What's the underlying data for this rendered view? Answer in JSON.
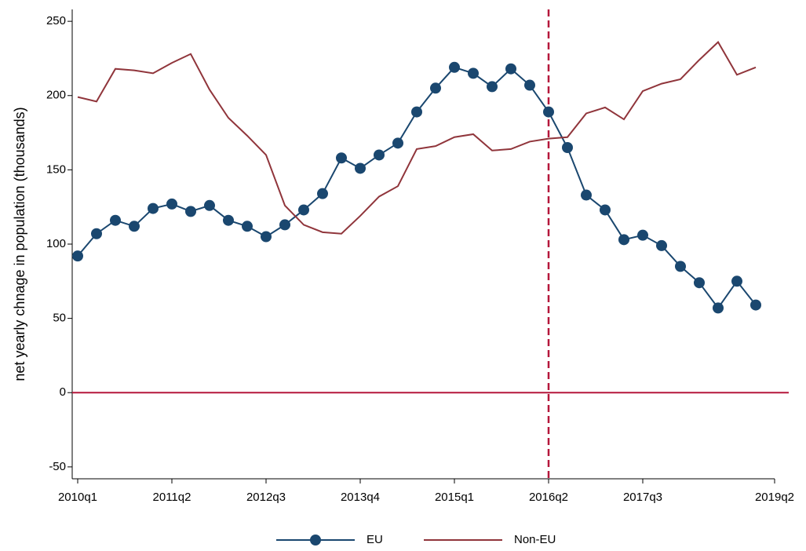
{
  "chart_data": {
    "type": "line",
    "y_label": "net yearly chnage in population (thousands)",
    "x": [
      "2010q1",
      "2010q2",
      "2010q3",
      "2010q4",
      "2011q1",
      "2011q2",
      "2011q3",
      "2011q4",
      "2012q1",
      "2012q2",
      "2012q3",
      "2012q4",
      "2013q1",
      "2013q2",
      "2013q3",
      "2013q4",
      "2014q1",
      "2014q2",
      "2014q3",
      "2014q4",
      "2015q1",
      "2015q2",
      "2015q3",
      "2015q4",
      "2016q1",
      "2016q2",
      "2016q3",
      "2016q4",
      "2017q1",
      "2017q2",
      "2017q3",
      "2017q4",
      "2018q1",
      "2018q2",
      "2018q3",
      "2018q4",
      "2019q1"
    ],
    "series": [
      {
        "name": "EU",
        "color": "#1a476f",
        "marker": true,
        "values": [
          92,
          107,
          116,
          112,
          124,
          127,
          122,
          126,
          116,
          112,
          105,
          113,
          123,
          134,
          158,
          151,
          160,
          168,
          189,
          205,
          219,
          215,
          206,
          218,
          207,
          189,
          165,
          133,
          123,
          103,
          106,
          99,
          85,
          74,
          57,
          75,
          59
        ]
      },
      {
        "name": "Non-EU",
        "color": "#90353b",
        "marker": false,
        "values": [
          199,
          196,
          218,
          217,
          215,
          222,
          228,
          204,
          185,
          173,
          160,
          126,
          113,
          108,
          107,
          119,
          132,
          139,
          164,
          166,
          172,
          174,
          163,
          164,
          169,
          171,
          172,
          188,
          192,
          184,
          203,
          208,
          211,
          224,
          236,
          214,
          219
        ]
      }
    ],
    "xlim": [
      "2010q1",
      "2019q2"
    ],
    "xticks": [
      "2010q1",
      "2011q2",
      "2012q3",
      "2013q4",
      "2015q1",
      "2016q2",
      "2017q3",
      "2019q2"
    ],
    "ylim": [
      -58,
      258
    ],
    "yticks": [
      -50,
      0,
      50,
      100,
      150,
      200,
      250
    ],
    "hline": 0,
    "vline": "2016q2",
    "ref_color": "#b5173b",
    "legend": "bottom"
  }
}
